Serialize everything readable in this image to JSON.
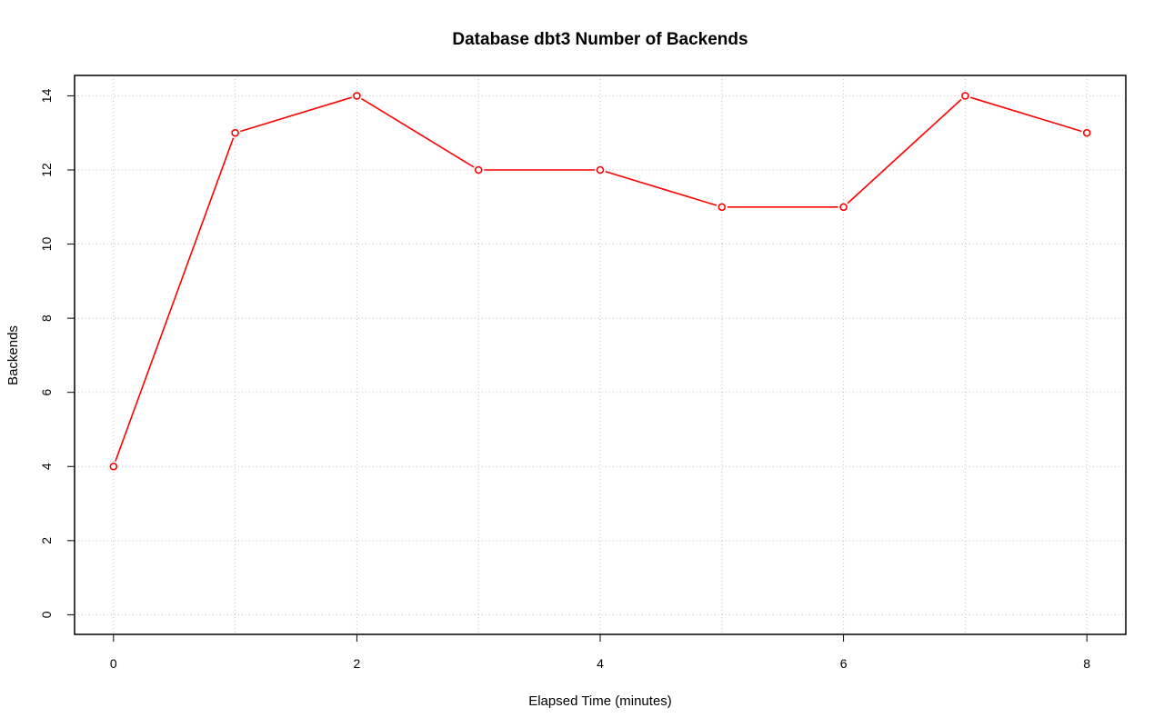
{
  "chart_data": {
    "type": "line",
    "title": "Database dbt3 Number of Backends",
    "xlabel": "Elapsed Time (minutes)",
    "ylabel": "Backends",
    "x": [
      0,
      1,
      2,
      3,
      4,
      5,
      6,
      7,
      8
    ],
    "series": [
      {
        "values": [
          4,
          13,
          14,
          12,
          12,
          11,
          11,
          14,
          13
        ],
        "color": "#ff0000",
        "marker": "open-circle"
      }
    ],
    "xlim": [
      -0.32,
      8.32
    ],
    "ylim": [
      -0.53,
      14.55
    ],
    "xticks": [
      "0",
      "2",
      "4",
      "6",
      "8"
    ],
    "yticks": [
      "0",
      "2",
      "4",
      "6",
      "8",
      "10",
      "12",
      "14"
    ],
    "grid": true,
    "grid_style": "dotted",
    "grid_color": "#c0c0c0"
  }
}
